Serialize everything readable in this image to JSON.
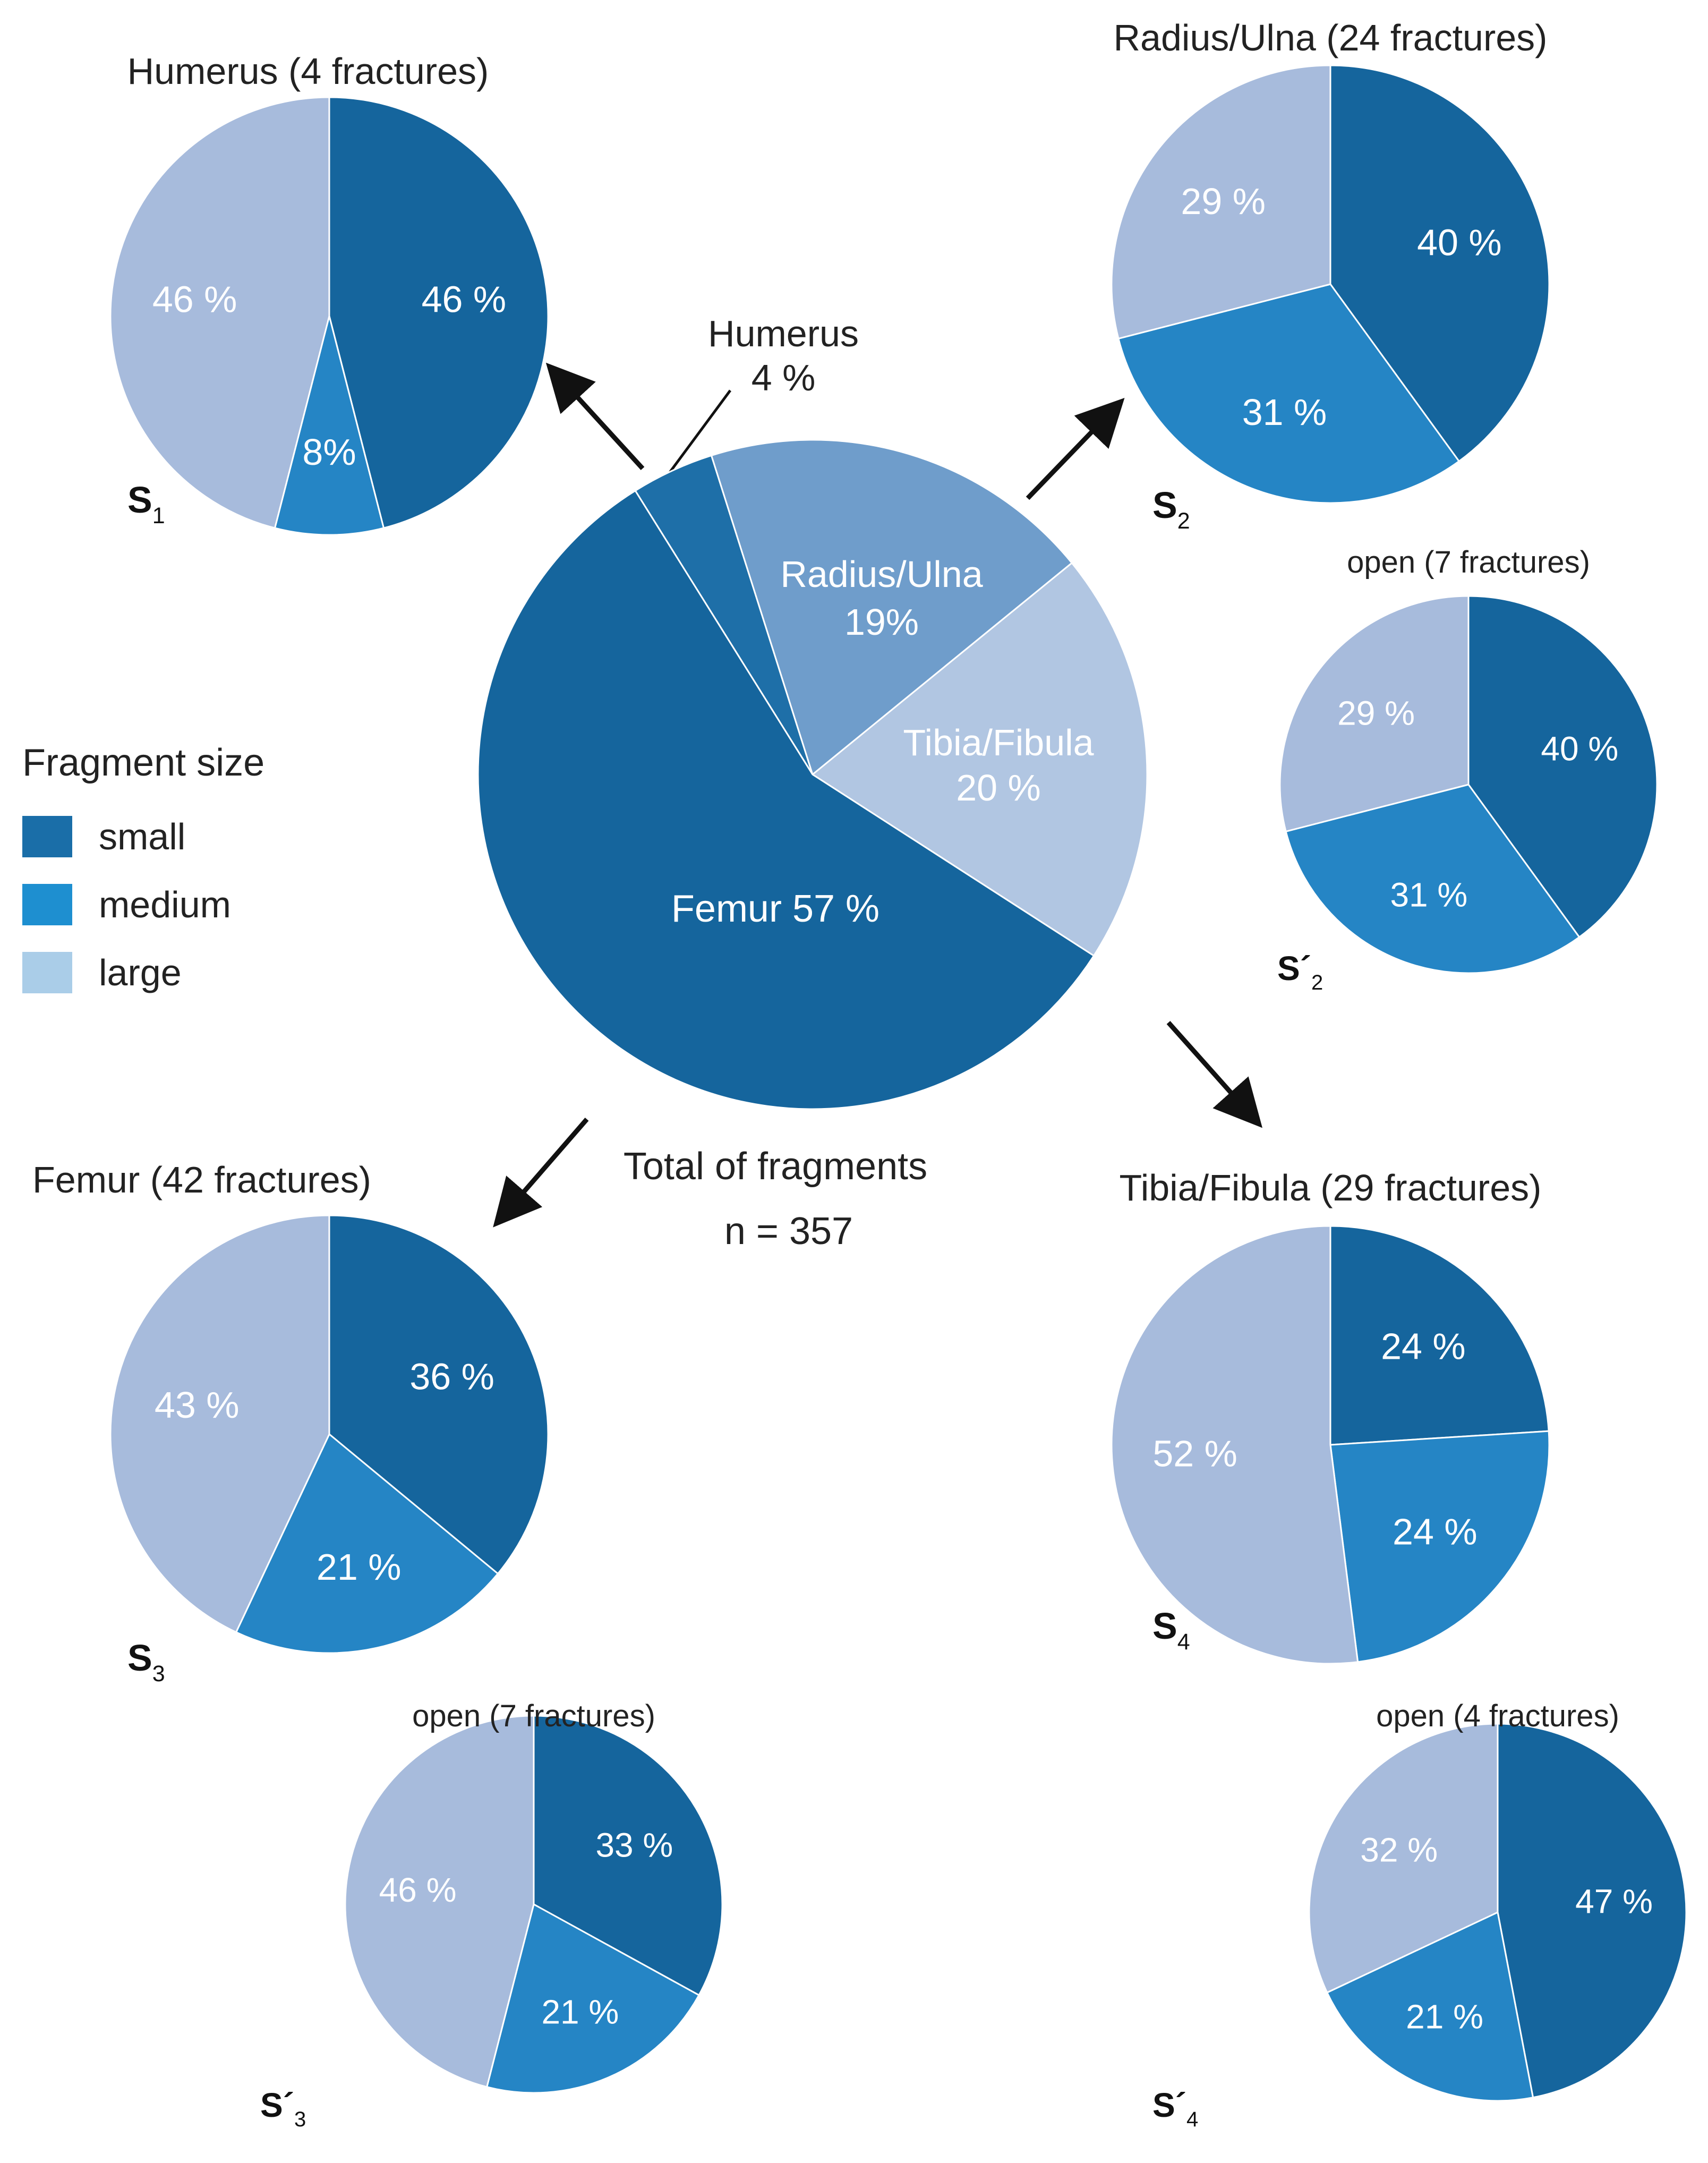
{
  "chart_data": {
    "type": "pie",
    "colors": {
      "small": "#15659d",
      "medium": "#2585c5",
      "large": "#a7bbdc",
      "main_radius": "#6f9dcb",
      "main_tibia": "#b1c6e2",
      "text_light": "#ffffff",
      "label_dark": "#222222"
    },
    "legend": {
      "title": "Fragment size",
      "items": [
        {
          "key": "small",
          "label": "small",
          "color": "#1a6ea8"
        },
        {
          "key": "medium",
          "label": "medium",
          "color": "#1e8fd0"
        },
        {
          "key": "large",
          "label": "large",
          "color": "#aacde8"
        }
      ]
    },
    "main": {
      "caption_line1": "Total of fragments",
      "caption_line2": "n = 357",
      "slices": [
        {
          "label": "Humerus",
          "value": 4,
          "label_text": "4 %",
          "color": "#1e6fa8"
        },
        {
          "label": "Radius/Ulna",
          "value": 19,
          "label_text": "19%",
          "color": "#6f9dcb"
        },
        {
          "label": "Tibia/Fibula",
          "value": 20,
          "label_text": "20 %",
          "color": "#b1c6e2"
        },
        {
          "label": "Femur",
          "value": 57,
          "label_text": "Femur 57 %",
          "color": "#15659d"
        }
      ]
    },
    "pies": [
      {
        "id": "S1",
        "letter": "S",
        "sub": "1",
        "prime": false,
        "title": "Humerus (4 fractures)",
        "slices": [
          {
            "size": "small",
            "value": 46,
            "label": "46 %"
          },
          {
            "size": "medium",
            "value": 8,
            "label": "8%"
          },
          {
            "size": "large",
            "value": 46,
            "label": "46 %"
          }
        ]
      },
      {
        "id": "S2",
        "letter": "S",
        "sub": "2",
        "prime": false,
        "title": "Radius/Ulna (24 fractures)",
        "slices": [
          {
            "size": "small",
            "value": 40,
            "label": "40 %"
          },
          {
            "size": "medium",
            "value": 31,
            "label": "31 %"
          },
          {
            "size": "large",
            "value": 29,
            "label": "29 %"
          }
        ]
      },
      {
        "id": "S2p",
        "letter": "S´",
        "sub": "2",
        "prime": true,
        "title": "open (7 fractures)",
        "slices": [
          {
            "size": "small",
            "value": 40,
            "label": "40 %"
          },
          {
            "size": "medium",
            "value": 31,
            "label": "31 %"
          },
          {
            "size": "large",
            "value": 29,
            "label": "29 %"
          }
        ]
      },
      {
        "id": "S3",
        "letter": "S",
        "sub": "3",
        "prime": false,
        "title": "Femur (42 fractures)",
        "slices": [
          {
            "size": "small",
            "value": 36,
            "label": "36 %"
          },
          {
            "size": "medium",
            "value": 21,
            "label": "21 %"
          },
          {
            "size": "large",
            "value": 43,
            "label": "43 %"
          }
        ]
      },
      {
        "id": "S3p",
        "letter": "S´",
        "sub": "3",
        "prime": true,
        "title": "open (7 fractures)",
        "slices": [
          {
            "size": "small",
            "value": 33,
            "label": "33 %"
          },
          {
            "size": "medium",
            "value": 21,
            "label": "21 %"
          },
          {
            "size": "large",
            "value": 46,
            "label": "46 %"
          }
        ]
      },
      {
        "id": "S4",
        "letter": "S",
        "sub": "4",
        "prime": false,
        "title": "Tibia/Fibula (29 fractures)",
        "slices": [
          {
            "size": "small",
            "value": 24,
            "label": "24 %"
          },
          {
            "size": "medium",
            "value": 24,
            "label": "24 %"
          },
          {
            "size": "large",
            "value": 52,
            "label": "52 %"
          }
        ]
      },
      {
        "id": "S4p",
        "letter": "S´",
        "sub": "4",
        "prime": true,
        "title": "open (4 fractures)",
        "slices": [
          {
            "size": "small",
            "value": 47,
            "label": "47 %"
          },
          {
            "size": "medium",
            "value": 21,
            "label": "21 %"
          },
          {
            "size": "large",
            "value": 32,
            "label": "32 %"
          }
        ]
      }
    ]
  }
}
